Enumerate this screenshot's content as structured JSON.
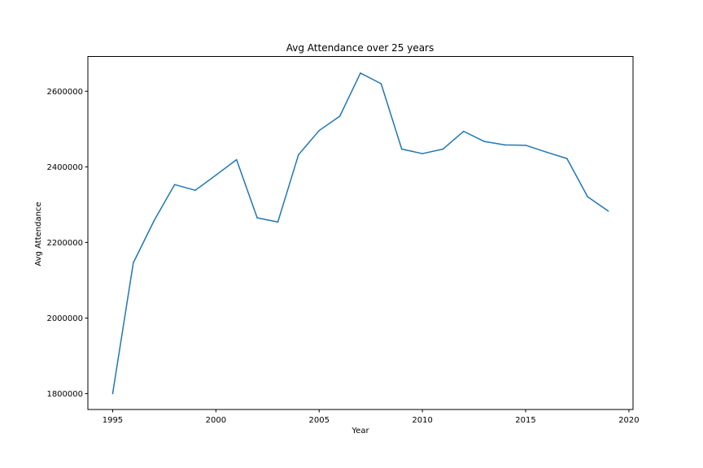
{
  "chart_data": {
    "type": "line",
    "title": "Avg Attendance over 25 years",
    "xlabel": "Year",
    "ylabel": "Avg Attendance",
    "xlim": [
      1993.8,
      2020.2
    ],
    "ylim": [
      1758000,
      2692000
    ],
    "xticks": [
      1995,
      2000,
      2005,
      2010,
      2015,
      2020
    ],
    "yticks": [
      1800000,
      2000000,
      2200000,
      2400000,
      2600000
    ],
    "grid": false,
    "line_color": "#1f77b4",
    "series": [
      {
        "x": [
          1995,
          1996,
          1997,
          1998,
          1999,
          2000,
          2001,
          2002,
          2003,
          2004,
          2005,
          2006,
          2007,
          2008,
          2009,
          2010,
          2011,
          2012,
          2013,
          2014,
          2015,
          2016,
          2017,
          2018,
          2019
        ],
        "values": [
          1800000,
          2146000,
          2257000,
          2353000,
          2338000,
          2378000,
          2419000,
          2265000,
          2254000,
          2432000,
          2496000,
          2534000,
          2648000,
          2620000,
          2447000,
          2435000,
          2447000,
          2494000,
          2467000,
          2458000,
          2457000,
          2439000,
          2422000,
          2321000,
          2283000
        ]
      }
    ]
  }
}
